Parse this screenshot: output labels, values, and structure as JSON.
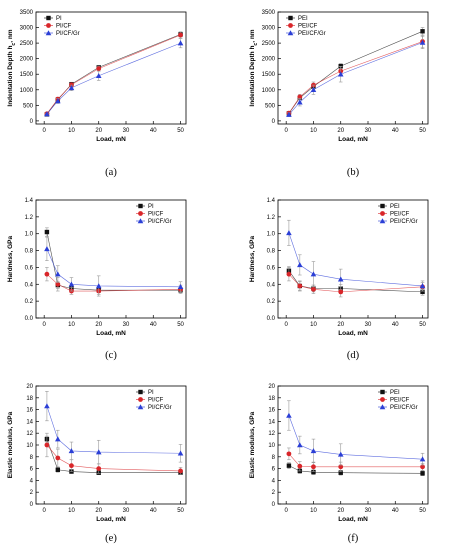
{
  "colors": {
    "black": "#111111",
    "red": "#d9262a",
    "blue": "#2b3fd6"
  },
  "chart_data": [
    {
      "id": "a",
      "type": "line",
      "caption": "(a)",
      "xlabel": "Load, mN",
      "ylabel": "Indentation Depth h",
      "ylabel_sub": "c",
      "ylabel_suffix": ", nm",
      "xlim": [
        -3,
        52
      ],
      "ylim": [
        -100,
        3500
      ],
      "xticks": [
        0,
        10,
        20,
        30,
        40,
        50
      ],
      "yticks": [
        0,
        500,
        1000,
        1500,
        2000,
        2500,
        3000,
        3500
      ],
      "legend": "top-left",
      "x": [
        1,
        5,
        10,
        20,
        50
      ],
      "series": [
        {
          "name": "PI",
          "color": "black",
          "marker": "square",
          "values": [
            210,
            680,
            1180,
            1720,
            2780
          ],
          "err": [
            20,
            40,
            40,
            60,
            80
          ]
        },
        {
          "name": "PI/CF",
          "color": "red",
          "marker": "circle",
          "values": [
            230,
            700,
            1160,
            1680,
            2760
          ],
          "err": [
            25,
            60,
            60,
            80,
            100
          ]
        },
        {
          "name": "PI/CF/Gr",
          "color": "blue",
          "marker": "triangle",
          "values": [
            220,
            640,
            1060,
            1450,
            2500
          ],
          "err": [
            30,
            80,
            90,
            150,
            150
          ]
        }
      ]
    },
    {
      "id": "b",
      "type": "line",
      "caption": "(b)",
      "xlabel": "Load, mN",
      "ylabel": "Indentation Depth h",
      "ylabel_sub": "c",
      "ylabel_suffix": ", nm",
      "xlim": [
        -3,
        52
      ],
      "ylim": [
        -100,
        3500
      ],
      "xticks": [
        0,
        10,
        20,
        30,
        40,
        50
      ],
      "yticks": [
        0,
        500,
        1000,
        1500,
        2000,
        2500,
        3000,
        3500
      ],
      "legend": "top-left",
      "x": [
        1,
        5,
        10,
        20,
        50
      ],
      "series": [
        {
          "name": "PEI",
          "color": "black",
          "marker": "square",
          "values": [
            240,
            740,
            1100,
            1760,
            2880
          ],
          "err": [
            30,
            60,
            60,
            80,
            120
          ]
        },
        {
          "name": "PEI/CF",
          "color": "red",
          "marker": "circle",
          "values": [
            250,
            770,
            1150,
            1600,
            2550
          ],
          "err": [
            40,
            80,
            100,
            150,
            200
          ]
        },
        {
          "name": "PEI/CF/Gr",
          "color": "blue",
          "marker": "triangle",
          "values": [
            200,
            600,
            1000,
            1500,
            2520
          ],
          "err": [
            60,
            120,
            150,
            250,
            200
          ]
        }
      ]
    },
    {
      "id": "c",
      "type": "line",
      "caption": "(c)",
      "xlabel": "Load, mN",
      "ylabel": "Hardness, GPa",
      "xlim": [
        -3,
        52
      ],
      "ylim": [
        0,
        1.4
      ],
      "xticks": [
        0,
        10,
        20,
        30,
        40,
        50
      ],
      "yticks": [
        0,
        0.2,
        0.4,
        0.6,
        0.8,
        1.0,
        1.2,
        1.4
      ],
      "ytick_labels": [
        "0.0",
        "0.2",
        "0.4",
        "0.6",
        "0.8",
        "1.0",
        "1.2",
        "1.4"
      ],
      "legend": "top-right",
      "x": [
        1,
        5,
        10,
        20,
        50
      ],
      "series": [
        {
          "name": "PI",
          "color": "black",
          "marker": "square",
          "values": [
            1.02,
            0.39,
            0.35,
            0.33,
            0.33
          ],
          "err": [
            0.05,
            0.04,
            0.03,
            0.03,
            0.03
          ]
        },
        {
          "name": "PI/CF",
          "color": "red",
          "marker": "circle",
          "values": [
            0.52,
            0.4,
            0.32,
            0.32,
            0.34
          ],
          "err": [
            0.08,
            0.08,
            0.04,
            0.04,
            0.05
          ]
        },
        {
          "name": "PI/CF/Gr",
          "color": "blue",
          "marker": "triangle",
          "values": [
            0.82,
            0.52,
            0.4,
            0.38,
            0.37
          ],
          "err": [
            0.14,
            0.1,
            0.08,
            0.12,
            0.06
          ]
        }
      ]
    },
    {
      "id": "d",
      "type": "line",
      "caption": "(d)",
      "xlabel": "Load, mN",
      "ylabel": "Hardness, GPa",
      "xlim": [
        -3,
        52
      ],
      "ylim": [
        0,
        1.4
      ],
      "xticks": [
        0,
        10,
        20,
        30,
        40,
        50
      ],
      "yticks": [
        0,
        0.2,
        0.4,
        0.6,
        0.8,
        1.0,
        1.2,
        1.4
      ],
      "ytick_labels": [
        "0.0",
        "0.2",
        "0.4",
        "0.6",
        "0.8",
        "1.0",
        "1.2",
        "1.4"
      ],
      "legend": "top-right",
      "x": [
        1,
        5,
        10,
        20,
        50
      ],
      "series": [
        {
          "name": "PEI",
          "color": "black",
          "marker": "square",
          "values": [
            0.56,
            0.38,
            0.35,
            0.35,
            0.31
          ],
          "err": [
            0.05,
            0.05,
            0.04,
            0.05,
            0.04
          ]
        },
        {
          "name": "PEI/CF",
          "color": "red",
          "marker": "circle",
          "values": [
            0.52,
            0.38,
            0.34,
            0.31,
            0.37
          ],
          "err": [
            0.08,
            0.06,
            0.05,
            0.06,
            0.05
          ]
        },
        {
          "name": "PEI/CF/Gr",
          "color": "blue",
          "marker": "triangle",
          "values": [
            1.01,
            0.63,
            0.52,
            0.46,
            0.38
          ],
          "err": [
            0.15,
            0.12,
            0.15,
            0.12,
            0.06
          ]
        }
      ]
    },
    {
      "id": "e",
      "type": "line",
      "caption": "(e)",
      "xlabel": "Load, mN",
      "ylabel": "Elastic modulus, GPa",
      "xlim": [
        -3,
        52
      ],
      "ylim": [
        0,
        20
      ],
      "xticks": [
        0,
        10,
        20,
        30,
        40,
        50
      ],
      "yticks": [
        0,
        2,
        4,
        6,
        8,
        10,
        12,
        14,
        16,
        18,
        20
      ],
      "legend": "top-right",
      "x": [
        1,
        5,
        10,
        20,
        50
      ],
      "series": [
        {
          "name": "PI",
          "color": "black",
          "marker": "square",
          "values": [
            11.0,
            5.8,
            5.5,
            5.3,
            5.3
          ],
          "err": [
            0.5,
            0.4,
            0.3,
            0.3,
            0.3
          ]
        },
        {
          "name": "PI/CF",
          "color": "red",
          "marker": "circle",
          "values": [
            10.0,
            7.8,
            6.5,
            6.0,
            5.6
          ],
          "err": [
            2.0,
            1.5,
            1.0,
            0.8,
            0.6
          ]
        },
        {
          "name": "PI/CF/Gr",
          "color": "blue",
          "marker": "triangle",
          "values": [
            16.6,
            11.0,
            9.0,
            8.8,
            8.6
          ],
          "err": [
            2.5,
            1.5,
            1.5,
            2.0,
            1.5
          ]
        }
      ]
    },
    {
      "id": "f",
      "type": "line",
      "caption": "(f)",
      "xlabel": "Load, mN",
      "ylabel": "Elastic modulus, GPa",
      "xlim": [
        -3,
        52
      ],
      "ylim": [
        0,
        20
      ],
      "xticks": [
        0,
        10,
        20,
        30,
        40,
        50
      ],
      "yticks": [
        0,
        2,
        4,
        6,
        8,
        10,
        12,
        14,
        16,
        18,
        20
      ],
      "legend": "top-right",
      "x": [
        1,
        5,
        10,
        20,
        50
      ],
      "series": [
        {
          "name": "PEI",
          "color": "black",
          "marker": "square",
          "values": [
            6.5,
            5.6,
            5.4,
            5.3,
            5.2
          ],
          "err": [
            0.5,
            0.4,
            0.4,
            0.4,
            0.4
          ]
        },
        {
          "name": "PEI/CF",
          "color": "red",
          "marker": "circle",
          "values": [
            8.5,
            6.4,
            6.3,
            6.3,
            6.3
          ],
          "err": [
            1.0,
            0.8,
            0.8,
            0.8,
            0.6
          ]
        },
        {
          "name": "PEI/CF/Gr",
          "color": "blue",
          "marker": "triangle",
          "values": [
            15.0,
            10.0,
            9.0,
            8.4,
            7.6
          ],
          "err": [
            2.5,
            1.5,
            2.0,
            1.8,
            1.0
          ]
        }
      ]
    }
  ]
}
